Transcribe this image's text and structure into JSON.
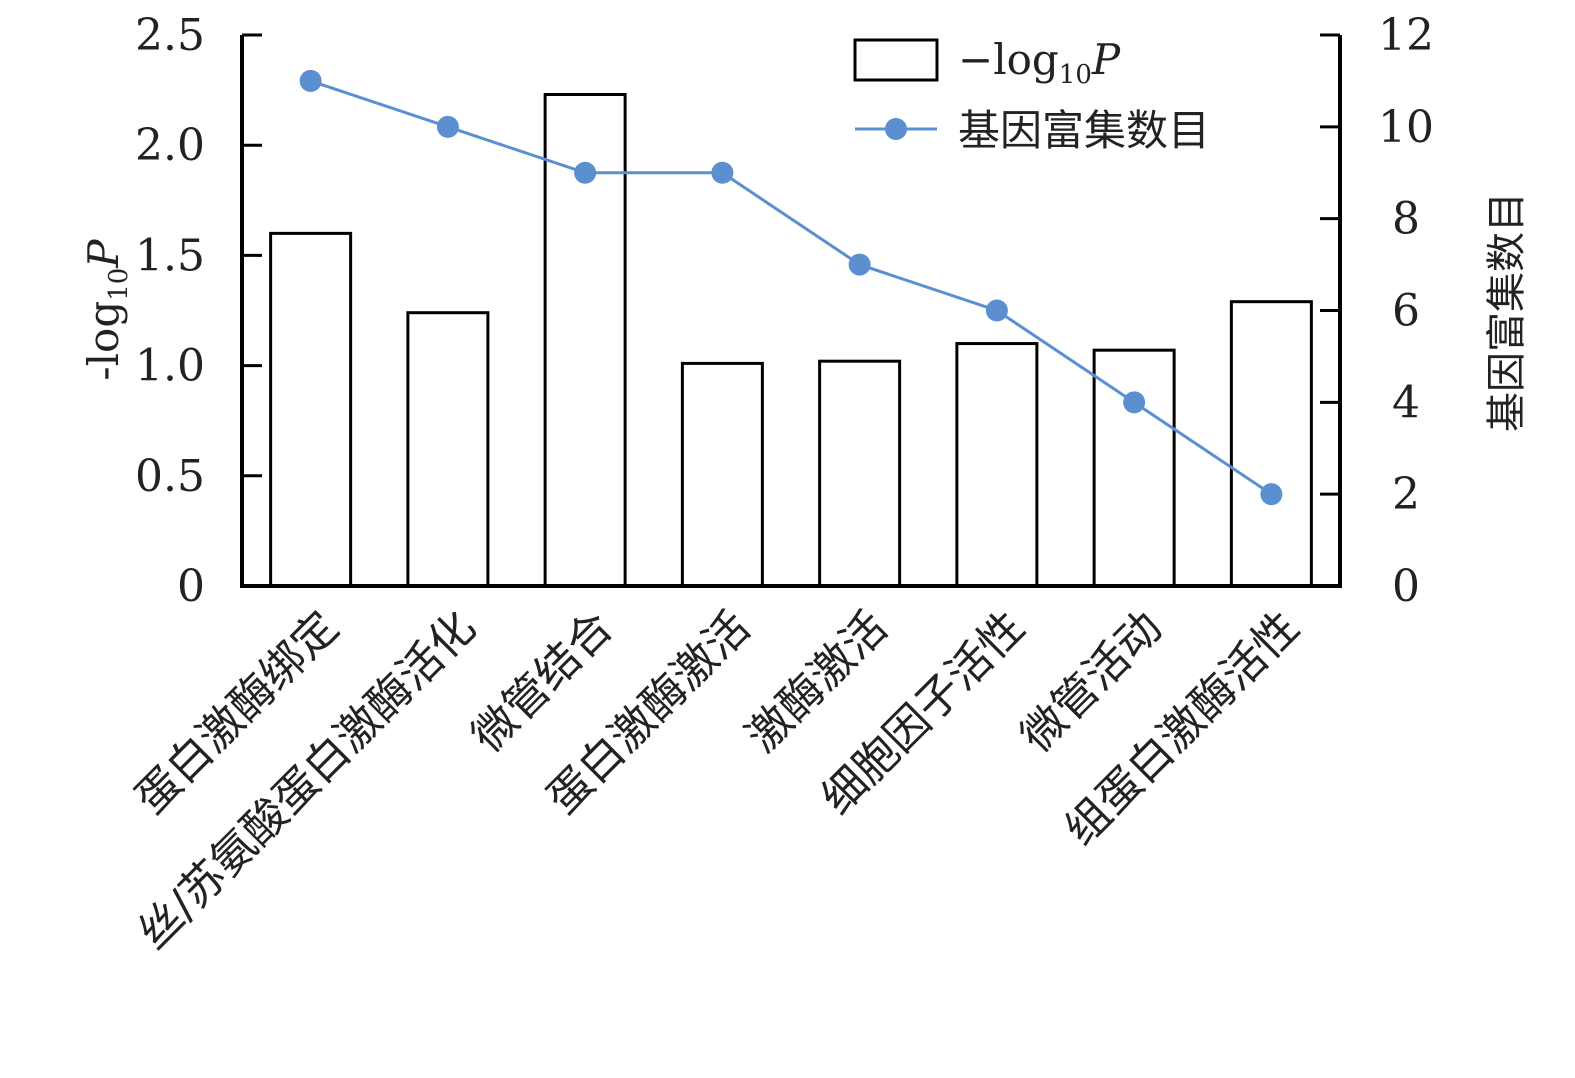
{
  "chart_data": {
    "type": "bar",
    "categories": [
      "蛋白激酶绑定",
      "丝/苏氨酸蛋白激酶活化",
      "微管结合",
      "蛋白激酶激活",
      "激酶激活",
      "细胞因子活性",
      "微管活动",
      "组蛋白激酶活性"
    ],
    "series": [
      {
        "kind": "bar",
        "axis": "left",
        "values": [
          1.6,
          1.24,
          2.23,
          1.01,
          1.02,
          1.1,
          1.07,
          1.29
        ]
      },
      {
        "name": "基因富集数目",
        "kind": "line",
        "axis": "right",
        "color": "#5b8fcf",
        "values": [
          11,
          10,
          9,
          9,
          7,
          6,
          4,
          2
        ]
      }
    ],
    "y_left": {
      "label_prefix": "-log",
      "label_sub": "10",
      "label_suffix": "P",
      "range": [
        0,
        2.5
      ],
      "ticks": [
        "0",
        "0.5",
        "1.0",
        "1.5",
        "2.0",
        "2.5"
      ]
    },
    "y_right": {
      "label": "基因富集数目",
      "range": [
        0,
        12
      ],
      "ticks": [
        "0",
        "2",
        "4",
        "6",
        "8",
        "10",
        "12"
      ]
    },
    "legend": {
      "placement": "top-right",
      "bar_prefix": "−log",
      "bar_sub": "10",
      "bar_suffix": "P",
      "line_label": "基因富集数目"
    },
    "grid": false
  }
}
